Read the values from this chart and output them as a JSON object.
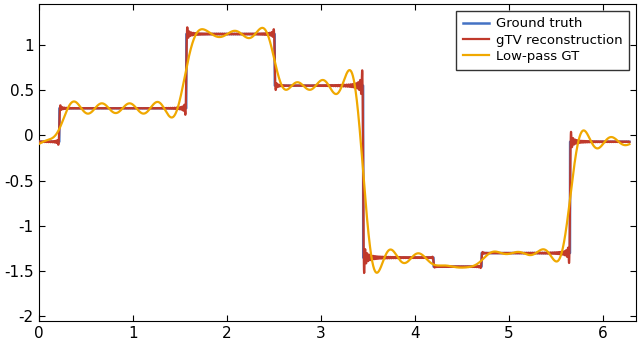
{
  "title": "",
  "xlim": [
    0,
    6.35
  ],
  "ylim": [
    -2.05,
    1.45
  ],
  "yticks": [
    -2,
    -1.5,
    -1,
    -0.5,
    0,
    0.5,
    1
  ],
  "xticks": [
    0,
    1,
    2,
    3,
    4,
    5,
    6
  ],
  "color_gt": "#4472C4",
  "color_gtv": "#C0392B",
  "color_lp": "#F0A800",
  "lw_gt": 1.8,
  "lw_gtv": 1.6,
  "lw_lp": 1.6,
  "legend_labels": [
    "Ground truth",
    "gTV reconstruction",
    "Low-pass GT"
  ],
  "n_fourier_lp": 21,
  "segments": [
    {
      "x_start": 0.0,
      "x_end": 0.22,
      "val": -0.07
    },
    {
      "x_start": 0.22,
      "x_end": 1.57,
      "val": 0.3
    },
    {
      "x_start": 1.57,
      "x_end": 2.51,
      "val": 1.12
    },
    {
      "x_start": 2.51,
      "x_end": 3.45,
      "val": 0.55
    },
    {
      "x_start": 3.45,
      "x_end": 4.2,
      "val": -1.35
    },
    {
      "x_start": 4.2,
      "x_end": 4.71,
      "val": -1.45
    },
    {
      "x_start": 4.71,
      "x_end": 5.65,
      "val": -1.3
    },
    {
      "x_start": 5.65,
      "x_end": 6.35,
      "val": -0.07
    }
  ]
}
